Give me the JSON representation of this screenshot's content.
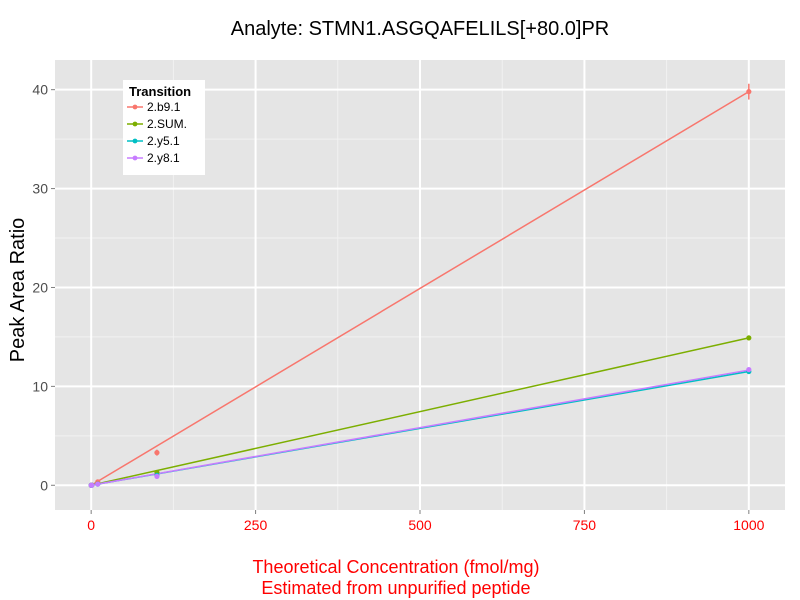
{
  "chart_data": {
    "type": "line",
    "title": "Analyte: STMN1.ASGQAFELILS[+80.0]PR",
    "xlabel": [
      "Theoretical Concentration (fmol/mg)",
      "Estimated from unpurified peptide"
    ],
    "ylabel": "Peak Area Ratio",
    "xlim": [
      -55,
      1055
    ],
    "ylim": [
      -2.5,
      43
    ],
    "x_ticks": [
      0,
      250,
      500,
      750,
      1000
    ],
    "y_ticks": [
      0,
      10,
      20,
      30,
      40
    ],
    "x_tick_labels": [
      "0",
      "250",
      "500",
      "750",
      "1000"
    ],
    "y_tick_labels": [
      "0",
      "10",
      "20",
      "30",
      "40"
    ],
    "xlabel_color": "#ff0000",
    "panel_background": "#e5e5e5",
    "legend": {
      "title": "Transition",
      "position": "top-left"
    },
    "series": [
      {
        "name": "2.b9.1",
        "color": "#f8766d",
        "points": [
          {
            "x": 0,
            "y": 0
          },
          {
            "x": 1,
            "y": 0.03
          },
          {
            "x": 10,
            "y": 0.35
          },
          {
            "x": 100,
            "y": 3.3
          },
          {
            "x": 1000,
            "y": 39.8
          }
        ],
        "fit": [
          {
            "x": 0,
            "y": 0
          },
          {
            "x": 1000,
            "y": 39.8
          }
        ],
        "errorbars": [
          {
            "x": 1000,
            "low": 39.0,
            "high": 40.6
          },
          {
            "x": 100,
            "low": 3.0,
            "high": 3.6
          }
        ]
      },
      {
        "name": "2.SUM.",
        "color": "#7cae00",
        "points": [
          {
            "x": 0,
            "y": 0
          },
          {
            "x": 1,
            "y": 0.02
          },
          {
            "x": 10,
            "y": 0.15
          },
          {
            "x": 100,
            "y": 1.3
          },
          {
            "x": 1000,
            "y": 14.9
          }
        ],
        "fit": [
          {
            "x": 0,
            "y": 0
          },
          {
            "x": 1000,
            "y": 14.9
          }
        ],
        "errorbars": []
      },
      {
        "name": "2.y5.1",
        "color": "#00bfc4",
        "points": [
          {
            "x": 0,
            "y": 0
          },
          {
            "x": 1,
            "y": 0.01
          },
          {
            "x": 10,
            "y": 0.12
          },
          {
            "x": 100,
            "y": 1.0
          },
          {
            "x": 1000,
            "y": 11.5
          }
        ],
        "fit": [
          {
            "x": 0,
            "y": 0
          },
          {
            "x": 1000,
            "y": 11.5
          }
        ],
        "errorbars": []
      },
      {
        "name": "2.y8.1",
        "color": "#c77cff",
        "points": [
          {
            "x": 0,
            "y": 0
          },
          {
            "x": 1,
            "y": 0.01
          },
          {
            "x": 10,
            "y": 0.12
          },
          {
            "x": 100,
            "y": 0.9
          },
          {
            "x": 1000,
            "y": 11.7
          }
        ],
        "fit": [
          {
            "x": 0,
            "y": 0
          },
          {
            "x": 1000,
            "y": 11.65
          }
        ],
        "errorbars": []
      }
    ]
  }
}
